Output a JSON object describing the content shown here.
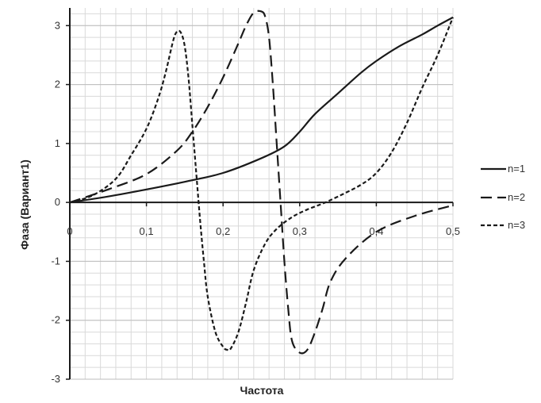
{
  "chart_data": {
    "type": "line",
    "title": "",
    "xlabel": "Частота",
    "ylabel": "Фаза (Вариант1)",
    "xlim": [
      0,
      0.5
    ],
    "ylim": [
      -3,
      3.3
    ],
    "grid": true,
    "legend_position": "right",
    "x_ticks": [
      0,
      0.1,
      0.2,
      0.3,
      0.4,
      0.5
    ],
    "x_tick_labels": [
      "0",
      "0,1",
      "0,2",
      "0,3",
      "0,4",
      "0,5"
    ],
    "y_ticks": [
      -3,
      -2,
      -1,
      0,
      1,
      2,
      3
    ],
    "y_tick_labels": [
      "-3",
      "-2",
      "-1",
      "0",
      "1",
      "2",
      "3"
    ],
    "series": [
      {
        "name": "n=1",
        "style": "solid",
        "color": "#1a1a1a",
        "points": [
          [
            0,
            0
          ],
          [
            0.05,
            0.1
          ],
          [
            0.1,
            0.22
          ],
          [
            0.15,
            0.35
          ],
          [
            0.2,
            0.5
          ],
          [
            0.25,
            0.75
          ],
          [
            0.28,
            0.95
          ],
          [
            0.3,
            1.2
          ],
          [
            0.32,
            1.5
          ],
          [
            0.35,
            1.85
          ],
          [
            0.38,
            2.2
          ],
          [
            0.4,
            2.4
          ],
          [
            0.43,
            2.65
          ],
          [
            0.46,
            2.85
          ],
          [
            0.48,
            3.0
          ],
          [
            0.5,
            3.14
          ]
        ]
      },
      {
        "name": "n=2",
        "style": "dashed",
        "color": "#1a1a1a",
        "points": [
          [
            0,
            0
          ],
          [
            0.05,
            0.22
          ],
          [
            0.1,
            0.48
          ],
          [
            0.14,
            0.88
          ],
          [
            0.16,
            1.2
          ],
          [
            0.18,
            1.62
          ],
          [
            0.2,
            2.12
          ],
          [
            0.22,
            2.7
          ],
          [
            0.23,
            3.0
          ],
          [
            0.24,
            3.22
          ],
          [
            0.25,
            3.24
          ],
          [
            0.255,
            3.15
          ],
          [
            0.26,
            2.8
          ],
          [
            0.265,
            2.0
          ],
          [
            0.27,
            1.0
          ],
          [
            0.275,
            0.0
          ],
          [
            0.28,
            -1.0
          ],
          [
            0.285,
            -1.8
          ],
          [
            0.29,
            -2.35
          ],
          [
            0.3,
            -2.55
          ],
          [
            0.31,
            -2.5
          ],
          [
            0.32,
            -2.2
          ],
          [
            0.33,
            -1.8
          ],
          [
            0.34,
            -1.35
          ],
          [
            0.36,
            -0.95
          ],
          [
            0.4,
            -0.5
          ],
          [
            0.45,
            -0.23
          ],
          [
            0.5,
            -0.05
          ]
        ]
      },
      {
        "name": "n=3",
        "style": "dotted",
        "color": "#1a1a1a",
        "points": [
          [
            0,
            0
          ],
          [
            0.03,
            0.12
          ],
          [
            0.06,
            0.4
          ],
          [
            0.08,
            0.8
          ],
          [
            0.1,
            1.25
          ],
          [
            0.115,
            1.75
          ],
          [
            0.125,
            2.2
          ],
          [
            0.135,
            2.75
          ],
          [
            0.14,
            2.9
          ],
          [
            0.145,
            2.88
          ],
          [
            0.15,
            2.65
          ],
          [
            0.155,
            2.1
          ],
          [
            0.16,
            1.3
          ],
          [
            0.165,
            0.5
          ],
          [
            0.17,
            -0.3
          ],
          [
            0.175,
            -1.0
          ],
          [
            0.18,
            -1.6
          ],
          [
            0.19,
            -2.2
          ],
          [
            0.2,
            -2.45
          ],
          [
            0.205,
            -2.5
          ],
          [
            0.21,
            -2.48
          ],
          [
            0.22,
            -2.2
          ],
          [
            0.23,
            -1.7
          ],
          [
            0.24,
            -1.15
          ],
          [
            0.255,
            -0.7
          ],
          [
            0.27,
            -0.45
          ],
          [
            0.29,
            -0.25
          ],
          [
            0.31,
            -0.12
          ],
          [
            0.33,
            -0.02
          ],
          [
            0.35,
            0.1
          ],
          [
            0.38,
            0.3
          ],
          [
            0.4,
            0.5
          ],
          [
            0.42,
            0.85
          ],
          [
            0.44,
            1.35
          ],
          [
            0.46,
            1.95
          ],
          [
            0.48,
            2.5
          ],
          [
            0.5,
            3.14
          ]
        ]
      }
    ]
  }
}
